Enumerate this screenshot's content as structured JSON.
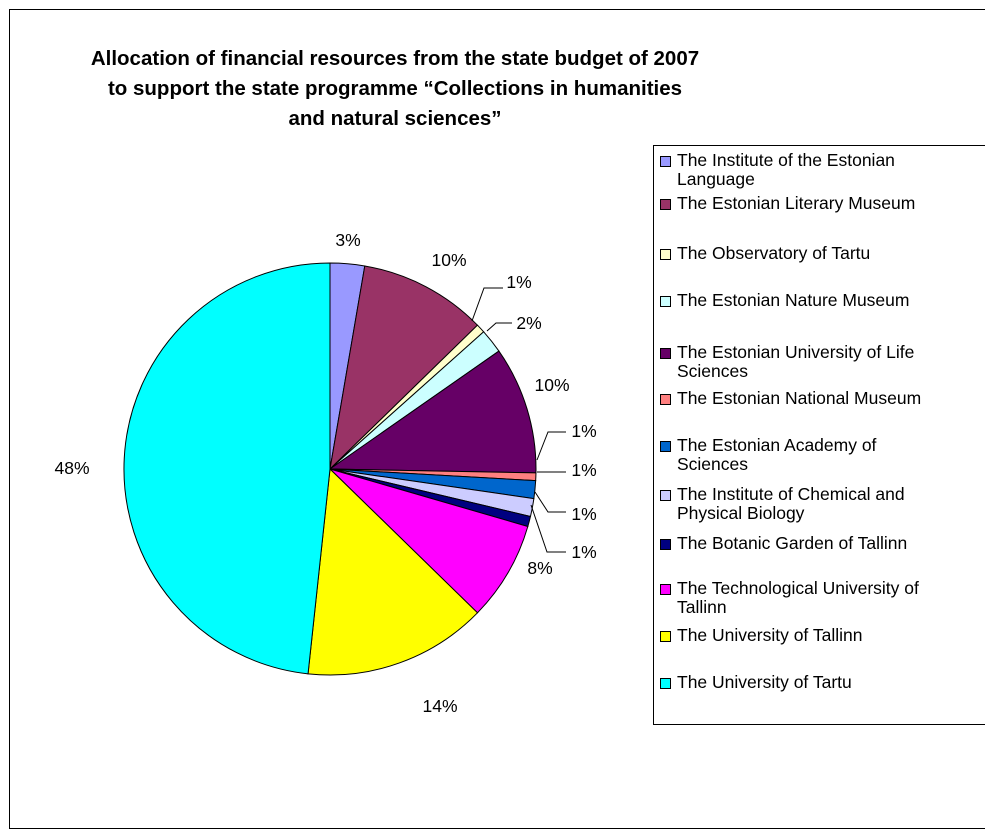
{
  "chart_data": {
    "type": "pie",
    "title": "Allocation of financial resources from the state budget of 2007 to support the state programme “Collections in humanities and natural sciences”",
    "title_lines": [
      "Allocation of financial resources from the state budget of 2007",
      "to support the state programme “Collections in humanities",
      "and natural sciences”"
    ],
    "legend_position": "right",
    "slices": [
      {
        "label": "The Institute of the Estonian Language",
        "value": 2.7,
        "pct_label": "3%",
        "color": "#9999FF"
      },
      {
        "label": "The Estonian Literary Museum",
        "value": 10.0,
        "pct_label": "10%",
        "color": "#993366"
      },
      {
        "label": "The Observatory of Tartu",
        "value": 0.7,
        "pct_label": "1%",
        "color": "#FFFFCC"
      },
      {
        "label": "The Estonian Nature Museum",
        "value": 1.9,
        "pct_label": "2%",
        "color": "#CCFFFF"
      },
      {
        "label": "The Estonian University of Life Sciences",
        "value": 10.0,
        "pct_label": "10%",
        "color": "#660066"
      },
      {
        "label": "The Estonian National Museum",
        "value": 0.6,
        "pct_label": "1%",
        "color": "#FF8080"
      },
      {
        "label": "The Estonian Academy of Sciences",
        "value": 1.4,
        "pct_label": "1%",
        "color": "#0066CC"
      },
      {
        "label": "The Institute of Chemical and Physical Biology",
        "value": 1.4,
        "pct_label": "1%",
        "color": "#CCCCFF"
      },
      {
        "label": "The Botanic Garden of Tallinn",
        "value": 0.8,
        "pct_label": "1%",
        "color": "#000080"
      },
      {
        "label": "The Technological University of Tallinn",
        "value": 7.8,
        "pct_label": "8%",
        "color": "#FF00FF"
      },
      {
        "label": "The University of Tallinn",
        "value": 14.4,
        "pct_label": "14%",
        "color": "#FFFF00"
      },
      {
        "label": "The University of Tartu",
        "value": 48.3,
        "pct_label": "48%",
        "color": "#00FFFF"
      }
    ],
    "legend": [
      [
        "The Institute of the Estonian",
        "Language"
      ],
      [
        "The Estonian Literary Museum"
      ],
      [
        "The Observatory of Tartu"
      ],
      [
        "The Estonian Nature Museum"
      ],
      [
        "The Estonian University of Life",
        "Sciences"
      ],
      [
        "The Estonian National Museum"
      ],
      [
        "The Estonian Academy of",
        "Sciences"
      ],
      [
        "The Institute of Chemical and",
        "Physical Biology"
      ],
      [
        "The Botanic Garden of Tallinn"
      ],
      [
        "The Technological University of",
        "Tallinn"
      ],
      [
        "The University of Tallinn"
      ],
      [
        "The University of Tartu"
      ]
    ]
  }
}
